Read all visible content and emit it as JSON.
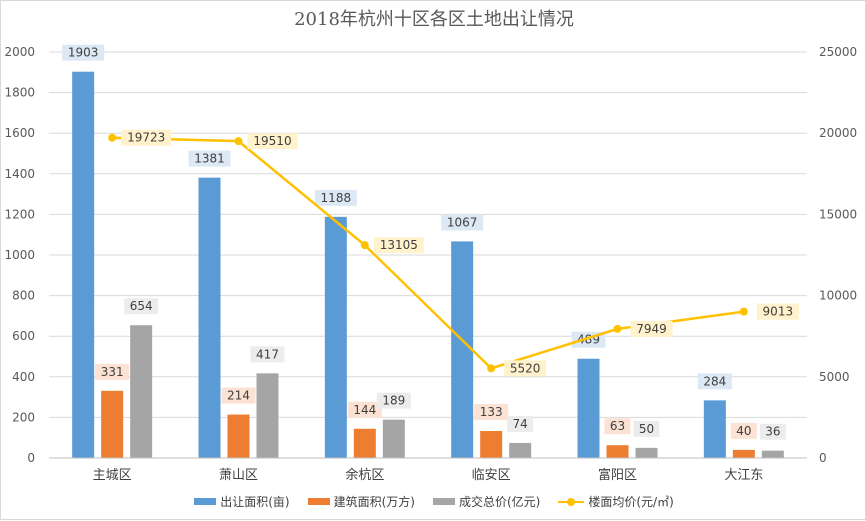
{
  "chart_data": {
    "type": "bar",
    "title": "2018年杭州十区各区土地出让情况",
    "categories": [
      "主城区",
      "萧山区",
      "余杭区",
      "临安区",
      "富阳区",
      "大江东"
    ],
    "series": [
      {
        "name": "出让面积(亩)",
        "type": "bar",
        "axis": "left",
        "values": [
          1903,
          1381,
          1188,
          1067,
          489,
          284
        ],
        "color": "#5b9bd5",
        "label_bg": "#dde8f5"
      },
      {
        "name": "建筑面积(万方)",
        "type": "bar",
        "axis": "left",
        "values": [
          331,
          214,
          144,
          133,
          63,
          40
        ],
        "color": "#ed7d31",
        "label_bg": "#fbe2d2"
      },
      {
        "name": "成交总价(亿元)",
        "type": "bar",
        "axis": "left",
        "values": [
          654,
          417,
          189,
          74,
          50,
          36
        ],
        "color": "#a5a5a5",
        "label_bg": "#ececec"
      },
      {
        "name": "楼面均价(元/㎡)",
        "type": "line",
        "axis": "right",
        "values": [
          19723,
          19510,
          13105,
          5520,
          7949,
          9013
        ],
        "color": "#ffc000",
        "label_bg": "#fff2cc"
      }
    ],
    "y_left": {
      "min": 0,
      "max": 2000,
      "step": 200
    },
    "y_right": {
      "min": 0,
      "max": 25000,
      "step": 5000
    },
    "grid": true,
    "legend": "bottom"
  }
}
